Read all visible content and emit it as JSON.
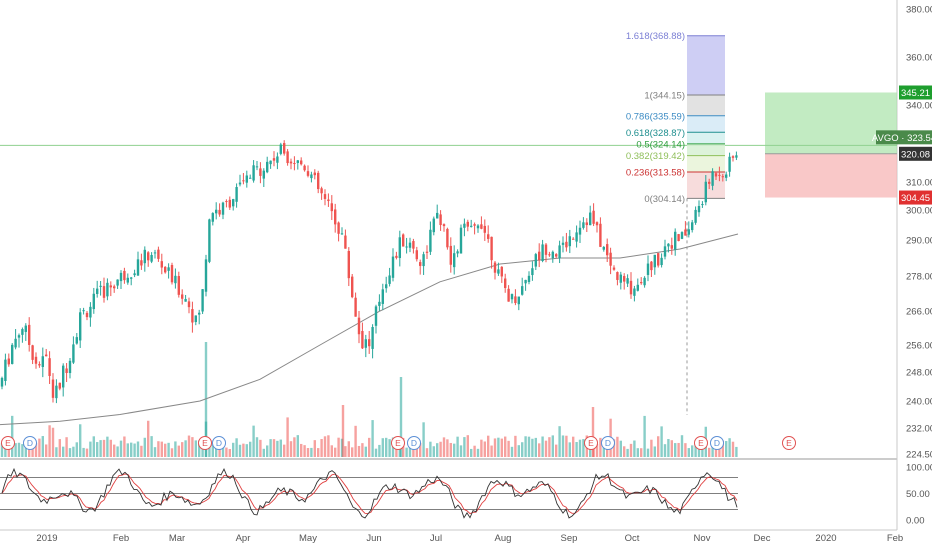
{
  "chart_data": {
    "type": "candlestick",
    "symbol": "AVGO",
    "price_axis": {
      "ticks": [
        "380.00",
        "360.00",
        "340.00",
        "320.00",
        "310.00",
        "300.00",
        "290.00",
        "278.00",
        "266.00",
        "256.00",
        "248.00",
        "240.00",
        "232.00",
        "224.50"
      ],
      "tick_values": [
        380,
        360,
        340,
        320,
        310,
        300,
        290,
        278,
        266,
        256,
        248,
        240,
        232,
        224.5
      ]
    },
    "time_axis": {
      "labels": [
        "2019",
        "Feb",
        "Mar",
        "Apr",
        "May",
        "Jun",
        "Jul",
        "Aug",
        "Sep",
        "Oct",
        "Nov",
        "Dec",
        "2020",
        "Feb"
      ]
    },
    "oscillator_axis": {
      "ticks": [
        "100.00",
        "50.00",
        "0.00"
      ],
      "tick_values": [
        100,
        50,
        0
      ],
      "guide_levels": [
        80,
        50,
        20
      ]
    },
    "price_labels": {
      "current": {
        "symbol": "AVGO",
        "value": "323.54"
      },
      "target": "345.21",
      "entry": "320.08",
      "stop": "304.45"
    },
    "fibonacci": [
      {
        "ratio": "1.618",
        "price": "368.88",
        "label": "1.618(368.88)",
        "color": "#7b7fd4"
      },
      {
        "ratio": "1",
        "price": "344.15",
        "label": "1(344.15)",
        "color": "#808080"
      },
      {
        "ratio": "0.786",
        "price": "335.59",
        "label": "0.786(335.59)",
        "color": "#3d8cc4"
      },
      {
        "ratio": "0.618",
        "price": "328.87",
        "label": "0.618(328.87)",
        "color": "#1f8f8f"
      },
      {
        "ratio": "0.5",
        "price": "324.14",
        "label": "0.5(324.14)",
        "color": "#2e9e3e"
      },
      {
        "ratio": "0.382",
        "price": "319.42",
        "label": "0.382(319.42)",
        "color": "#8fbf5a"
      },
      {
        "ratio": "0.236",
        "price": "313.58",
        "label": "0.236(313.58)",
        "color": "#cc3333"
      },
      {
        "ratio": "0",
        "price": "304.14",
        "label": "0(304.14)",
        "color": "#808080"
      }
    ],
    "events": [
      {
        "type": "earnings",
        "label": "E"
      },
      {
        "type": "dividend",
        "label": "D"
      },
      {
        "type": "earnings",
        "label": "E"
      },
      {
        "type": "dividend",
        "label": "D"
      },
      {
        "type": "earnings",
        "label": "E"
      },
      {
        "type": "dividend",
        "label": "D"
      },
      {
        "type": "earnings",
        "label": "E"
      },
      {
        "type": "dividend",
        "label": "D"
      },
      {
        "type": "earnings",
        "label": "E"
      },
      {
        "type": "dividend",
        "label": "D"
      },
      {
        "type": "earnings",
        "label": "E"
      }
    ],
    "candles_approx": [
      {
        "m": "Jan",
        "o": 254,
        "c": 262
      },
      {
        "m": "Jan",
        "o": 260,
        "c": 250
      },
      {
        "m": "Jan",
        "o": 244,
        "c": 256
      },
      {
        "m": "Jan",
        "o": 238,
        "c": 246
      },
      {
        "m": "Feb",
        "o": 262,
        "c": 270
      },
      {
        "m": "Feb",
        "o": 272,
        "c": 276
      },
      {
        "m": "Feb",
        "o": 278,
        "c": 282
      },
      {
        "m": "Feb",
        "o": 282,
        "c": 278
      },
      {
        "m": "Mar",
        "o": 280,
        "c": 274
      },
      {
        "m": "Mar",
        "o": 270,
        "c": 262
      },
      {
        "m": "Mar",
        "o": 264,
        "c": 270
      },
      {
        "m": "Mar",
        "o": 288,
        "c": 300
      },
      {
        "m": "Apr",
        "o": 300,
        "c": 306
      },
      {
        "m": "Apr",
        "o": 306,
        "c": 310
      },
      {
        "m": "Apr",
        "o": 312,
        "c": 318
      },
      {
        "m": "Apr",
        "o": 318,
        "c": 322
      },
      {
        "m": "May",
        "o": 320,
        "c": 310
      },
      {
        "m": "May",
        "o": 314,
        "c": 300
      },
      {
        "m": "May",
        "o": 300,
        "c": 290
      },
      {
        "m": "May",
        "o": 282,
        "c": 270
      },
      {
        "m": "Jun",
        "o": 258,
        "c": 252
      },
      {
        "m": "Jun",
        "o": 254,
        "c": 266
      },
      {
        "m": "Jun",
        "o": 270,
        "c": 284
      },
      {
        "m": "Jun",
        "o": 284,
        "c": 290
      },
      {
        "m": "Jul",
        "o": 286,
        "c": 294
      },
      {
        "m": "Jul",
        "o": 296,
        "c": 288
      },
      {
        "m": "Jul",
        "o": 286,
        "c": 298
      },
      {
        "m": "Jul",
        "o": 300,
        "c": 304
      },
      {
        "m": "Aug",
        "o": 298,
        "c": 280
      },
      {
        "m": "Aug",
        "o": 272,
        "c": 268
      },
      {
        "m": "Aug",
        "o": 270,
        "c": 282
      },
      {
        "m": "Aug",
        "o": 276,
        "c": 280
      },
      {
        "m": "Sep",
        "o": 284,
        "c": 290
      },
      {
        "m": "Sep",
        "o": 290,
        "c": 300
      },
      {
        "m": "Sep",
        "o": 296,
        "c": 286
      },
      {
        "m": "Sep",
        "o": 288,
        "c": 280
      },
      {
        "m": "Oct",
        "o": 276,
        "c": 272
      },
      {
        "m": "Oct",
        "o": 274,
        "c": 282
      },
      {
        "m": "Oct",
        "o": 284,
        "c": 292
      },
      {
        "m": "Oct",
        "o": 292,
        "c": 296
      },
      {
        "m": "Nov",
        "o": 304,
        "c": 316
      },
      {
        "m": "Nov",
        "o": 316,
        "c": 312
      },
      {
        "m": "Nov",
        "o": 310,
        "c": 318
      },
      {
        "m": "Nov",
        "o": 314,
        "c": 323.54
      }
    ],
    "colors": {
      "up": "#26a69a",
      "down": "#ef5350",
      "sma": "#888888",
      "stoch_k": "#333333",
      "stoch_d": "#e04040",
      "target_zone": "#a8e3a8",
      "stop_zone": "#f7b5b5",
      "target_label": "#1e9e2e",
      "stop_label": "#e03030",
      "entry_label": "#333333",
      "current_label": "#4a8a4a"
    }
  }
}
